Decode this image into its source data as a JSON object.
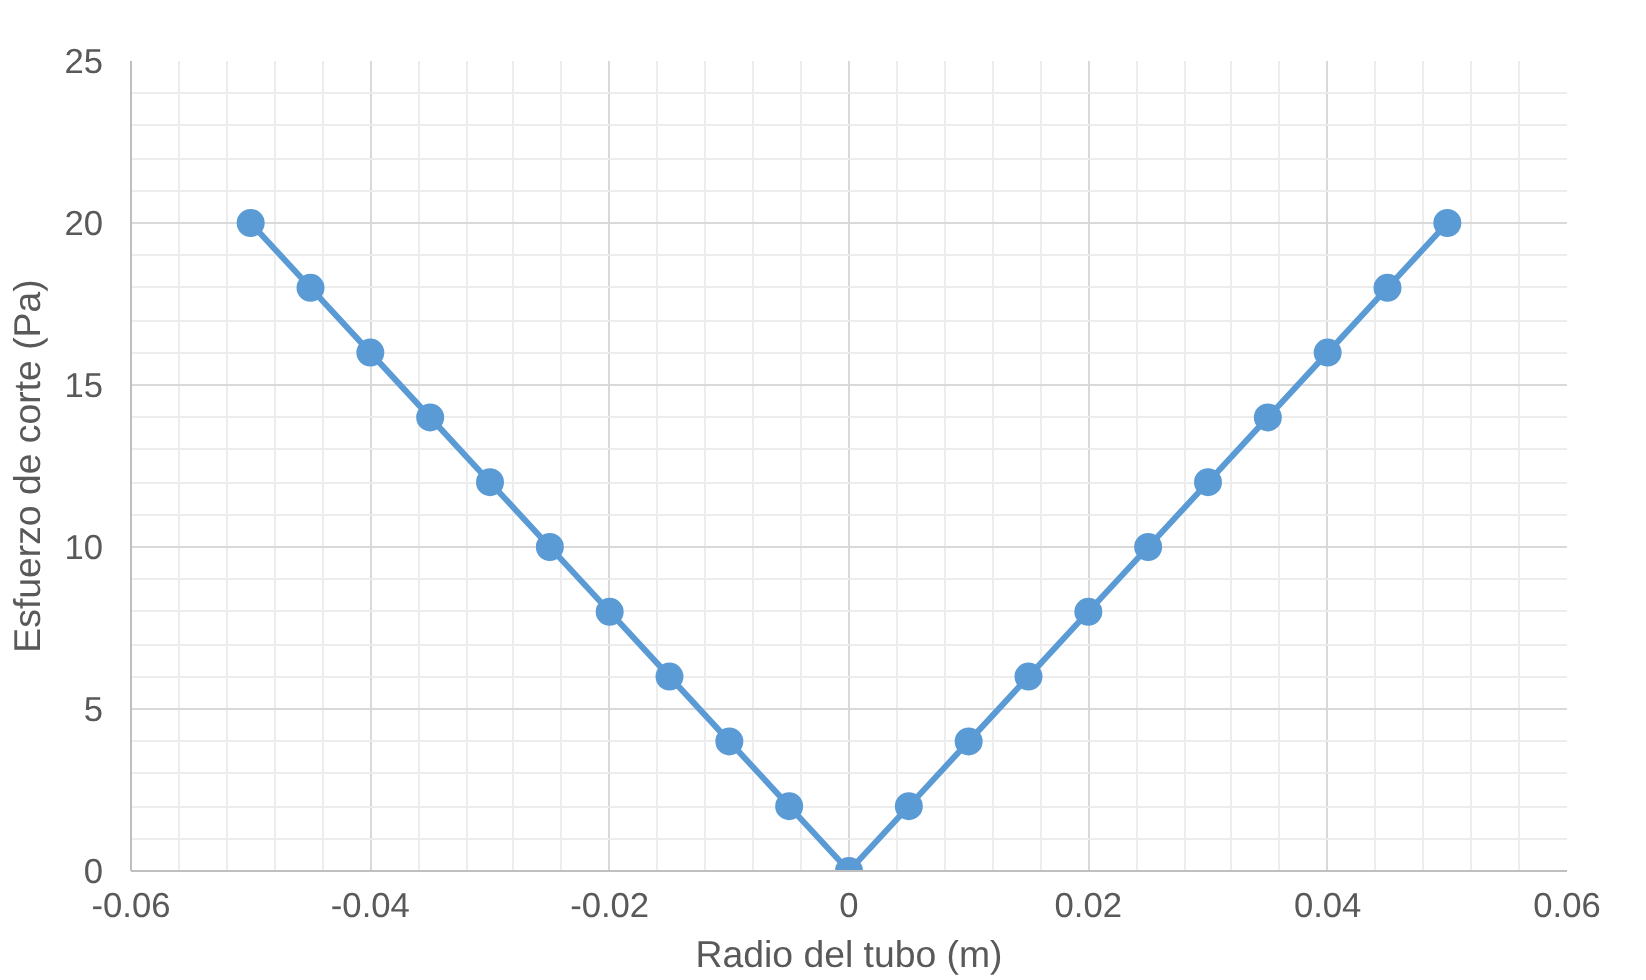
{
  "chart_data": {
    "type": "line",
    "xlabel": "Radio del tubo (m)",
    "ylabel": "Esfuerzo de corte (Pa)",
    "x": [
      -0.05,
      -0.045,
      -0.04,
      -0.035,
      -0.03,
      -0.025,
      -0.02,
      -0.015,
      -0.01,
      -0.005,
      0,
      0.005,
      0.01,
      0.015,
      0.02,
      0.025,
      0.03,
      0.035,
      0.04,
      0.045,
      0.05
    ],
    "series": [
      {
        "color": "#5b9bd5",
        "values": [
          20,
          18,
          16,
          14,
          12,
          10,
          8,
          6,
          4,
          2,
          0,
          2,
          4,
          6,
          8,
          10,
          12,
          14,
          16,
          18,
          20
        ]
      }
    ],
    "xlim": [
      -0.06,
      0.06
    ],
    "xticks": [
      -0.06,
      -0.04,
      -0.02,
      0,
      0.02,
      0.04,
      0.06
    ],
    "ylim": [
      0,
      25
    ],
    "yticks": [
      0,
      5,
      10,
      15,
      20,
      25
    ],
    "grid": true,
    "marker": "circle",
    "line_style": "solid"
  }
}
